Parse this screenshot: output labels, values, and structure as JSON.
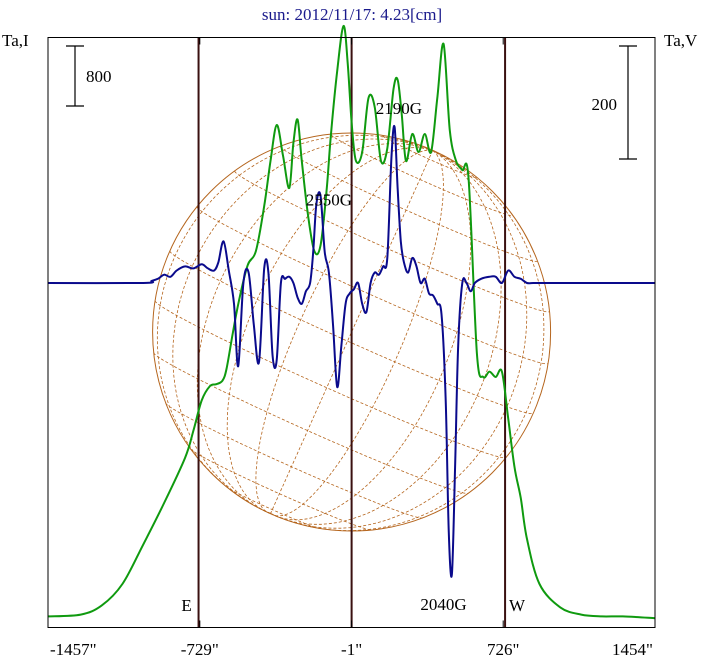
{
  "chart_data": {
    "type": "line",
    "title": "sun: 2012/11/17: 4.23[cm]",
    "left_axis_label": "Ta,I",
    "right_axis_label": "Ta,V",
    "x_ticks": [
      "-1457\"",
      "-729\"",
      "-1\"",
      "726\"",
      "1454\""
    ],
    "x_tick_values": [
      -1457,
      -729,
      -1,
      726,
      1454
    ],
    "xlim": [
      -1457,
      1454
    ],
    "scale_bars": [
      {
        "side": "left",
        "label": "800"
      },
      {
        "side": "right",
        "label": "200"
      }
    ],
    "limb_markers": [
      {
        "label": "E",
        "x": -735
      },
      {
        "label": "W",
        "x": 735
      }
    ],
    "vertical_lines": [
      -735,
      -1,
      735
    ],
    "annotations": [
      {
        "text": "2550G",
        "x": -110,
        "y_frac": 0.285
      },
      {
        "text": "2190G",
        "x": 226,
        "y_frac": 0.13
      },
      {
        "text": "2040G",
        "x": 440,
        "y_frac": 0.97
      }
    ],
    "series": [
      {
        "color": "#0f9a0f",
        "x": [
          -1457,
          -1300,
          -1200,
          -1100,
          -1000,
          -900,
          -800,
          -760,
          -720,
          -680,
          -650,
          -620,
          -600,
          -570,
          -540,
          -500,
          -460,
          -420,
          -390,
          -360,
          -330,
          -300,
          -280,
          -260,
          -240,
          -210,
          -180,
          -150,
          -120,
          -100,
          -70,
          -40,
          -20,
          0,
          20,
          50,
          80,
          110,
          140,
          170,
          200,
          220,
          240,
          260,
          290,
          320,
          350,
          380,
          410,
          440,
          470,
          500,
          530,
          560,
          600,
          630,
          660,
          690,
          720,
          750,
          780,
          810,
          840,
          900,
          1000,
          1100,
          1200,
          1300,
          1454
        ],
        "values": [
          0.02,
          0.03,
          0.08,
          0.2,
          0.42,
          0.65,
          0.9,
          1.05,
          1.22,
          1.3,
          1.31,
          1.33,
          1.4,
          1.6,
          1.78,
          1.97,
          2.05,
          2.3,
          2.55,
          2.75,
          2.58,
          2.4,
          2.65,
          2.78,
          2.55,
          2.25,
          2.05,
          2.08,
          2.4,
          2.7,
          3.05,
          3.3,
          3.1,
          2.75,
          2.55,
          2.6,
          2.9,
          2.85,
          2.55,
          2.62,
          2.95,
          3.0,
          2.8,
          2.55,
          2.7,
          2.6,
          2.7,
          2.6,
          2.9,
          3.2,
          2.72,
          2.55,
          2.5,
          2.45,
          1.48,
          1.35,
          1.38,
          1.35,
          1.38,
          1.12,
          0.85,
          0.68,
          0.45,
          0.2,
          0.07,
          0.03,
          0.02,
          0.02,
          0.01
        ]
      },
      {
        "color": "#0a0a8c",
        "x": [
          -1457,
          -1000,
          -960,
          -930,
          -900,
          -870,
          -840,
          -800,
          -760,
          -720,
          -690,
          -660,
          -640,
          -615,
          -590,
          -565,
          -545,
          -520,
          -495,
          -470,
          -445,
          -420,
          -400,
          -380,
          -360,
          -340,
          -320,
          -300,
          -280,
          -260,
          -240,
          -220,
          -200,
          -185,
          -170,
          -150,
          -130,
          -110,
          -90,
          -70,
          -50,
          -30,
          -10,
          10,
          30,
          50,
          70,
          90,
          110,
          130,
          150,
          170,
          190,
          205,
          220,
          235,
          250,
          270,
          290,
          310,
          330,
          350,
          370,
          390,
          410,
          430,
          450,
          465,
          480,
          495,
          510,
          530,
          550,
          570,
          590,
          620,
          660,
          690,
          720,
          750,
          780,
          810,
          840,
          870,
          910,
          950,
          1454
        ],
        "values": [
          0,
          0,
          0.01,
          0.02,
          0.04,
          0.03,
          0.06,
          0.08,
          0.07,
          0.09,
          0.07,
          0.06,
          0.1,
          0.2,
          0.06,
          -0.1,
          -0.4,
          0.0,
          0.05,
          -0.2,
          -0.38,
          0.07,
          0.05,
          -0.35,
          -0.37,
          0.0,
          0.02,
          0.03,
          0.0,
          -0.07,
          -0.1,
          -0.04,
          0.0,
          0.15,
          0.38,
          0.42,
          0.15,
          0.05,
          -0.2,
          -0.5,
          -0.3,
          -0.1,
          -0.05,
          -0.03,
          0.0,
          -0.1,
          -0.14,
          0.0,
          0.05,
          0.04,
          0.08,
          0.12,
          0.6,
          0.75,
          0.45,
          0.2,
          0.1,
          0.05,
          0.12,
          0.08,
          0.0,
          0.02,
          -0.05,
          -0.06,
          -0.1,
          -0.15,
          -0.55,
          -1.2,
          -1.4,
          -0.9,
          -0.3,
          0.0,
          0.0,
          -0.04,
          0.0,
          0.02,
          0.03,
          0.03,
          0.0,
          0.06,
          0.03,
          0.02,
          0.0,
          0.0,
          0.0,
          0.0,
          0
        ]
      }
    ]
  }
}
